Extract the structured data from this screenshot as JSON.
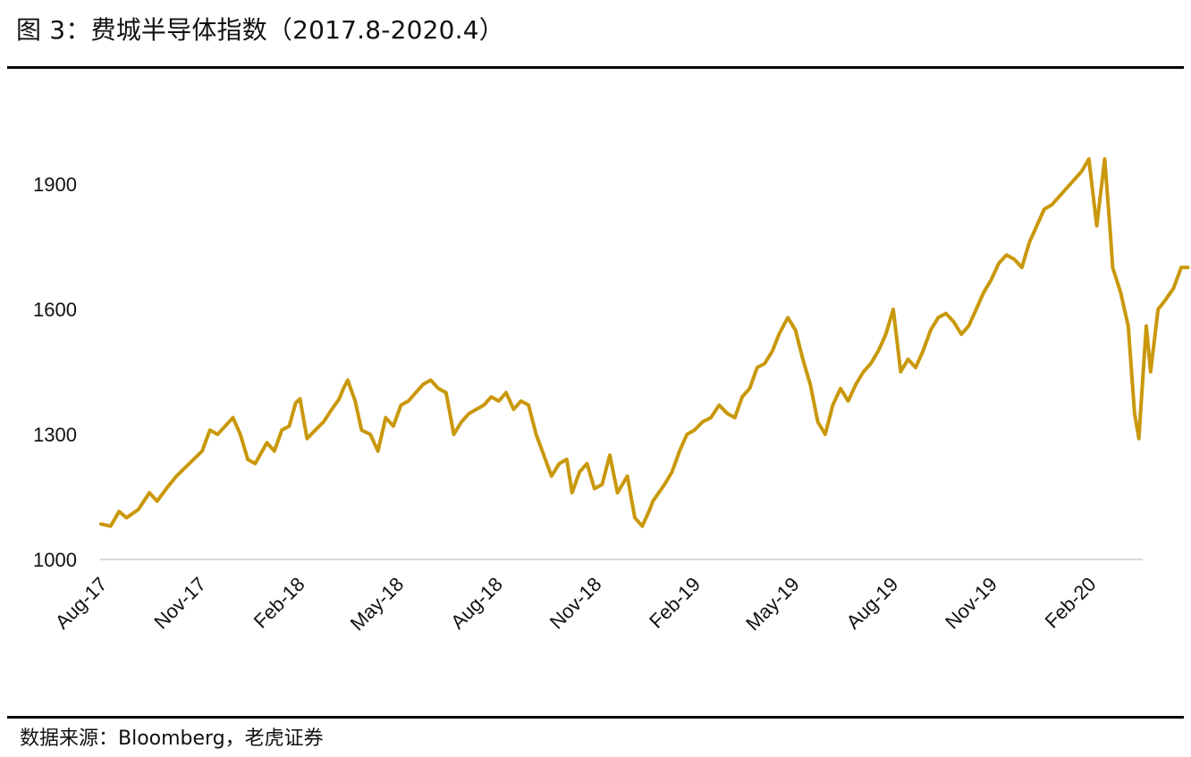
{
  "header": {
    "title": "图 3：费城半导体指数（2017.8-2020.4）"
  },
  "footer": {
    "source": "数据来源：Bloomberg，老虎证券"
  },
  "colors": {
    "series": "#C9980B",
    "axis": "#D9D9D9",
    "text": "#111111",
    "rule": "#000000"
  },
  "chart_data": {
    "type": "line",
    "title": "",
    "xlabel": "",
    "ylabel": "",
    "ylim": [
      1000,
      2000
    ],
    "yticks": [
      1000,
      1300,
      1600,
      1900
    ],
    "xticks": [
      "Aug-17",
      "Nov-17",
      "Feb-18",
      "May-18",
      "Aug-18",
      "Nov-18",
      "Feb-19",
      "May-19",
      "Aug-19",
      "Nov-19",
      "Feb-20"
    ],
    "grid": false,
    "legend": "none",
    "series": [
      {
        "x": [
          "2017-08-01",
          "2017-08-10",
          "2017-08-18",
          "2017-08-25",
          "2017-09-05",
          "2017-09-15",
          "2017-09-22",
          "2017-10-02",
          "2017-10-10",
          "2017-10-18",
          "2017-10-26",
          "2017-11-03",
          "2017-11-10",
          "2017-11-17",
          "2017-11-24",
          "2017-12-01",
          "2017-12-08",
          "2017-12-15",
          "2017-12-22",
          "2018-01-02",
          "2018-01-09",
          "2018-01-16",
          "2018-01-23",
          "2018-01-29",
          "2018-02-02",
          "2018-02-08",
          "2018-02-15",
          "2018-02-22",
          "2018-03-01",
          "2018-03-08",
          "2018-03-12",
          "2018-03-16",
          "2018-03-23",
          "2018-03-29",
          "2018-04-06",
          "2018-04-13",
          "2018-04-20",
          "2018-04-27",
          "2018-05-04",
          "2018-05-11",
          "2018-05-18",
          "2018-05-25",
          "2018-06-01",
          "2018-06-08",
          "2018-06-15",
          "2018-06-22",
          "2018-06-29",
          "2018-07-06",
          "2018-07-13",
          "2018-07-20",
          "2018-07-27",
          "2018-08-03",
          "2018-08-10",
          "2018-08-17",
          "2018-08-24",
          "2018-08-31",
          "2018-09-07",
          "2018-09-14",
          "2018-09-21",
          "2018-09-28",
          "2018-10-05",
          "2018-10-10",
          "2018-10-17",
          "2018-10-24",
          "2018-10-31",
          "2018-11-07",
          "2018-11-14",
          "2018-11-21",
          "2018-11-30",
          "2018-12-07",
          "2018-12-14",
          "2018-12-21",
          "2018-12-24",
          "2019-01-04",
          "2019-01-11",
          "2019-01-18",
          "2019-01-25",
          "2019-02-01",
          "2019-02-08",
          "2019-02-15",
          "2019-02-22",
          "2019-03-01",
          "2019-03-08",
          "2019-03-15",
          "2019-03-22",
          "2019-03-29",
          "2019-04-05",
          "2019-04-12",
          "2019-04-18",
          "2019-04-26",
          "2019-05-03",
          "2019-05-10",
          "2019-05-17",
          "2019-05-24",
          "2019-05-31",
          "2019-06-07",
          "2019-06-14",
          "2019-06-21",
          "2019-06-28",
          "2019-07-05",
          "2019-07-12",
          "2019-07-19",
          "2019-07-26",
          "2019-08-02",
          "2019-08-09",
          "2019-08-16",
          "2019-08-23",
          "2019-08-30",
          "2019-09-06",
          "2019-09-13",
          "2019-09-20",
          "2019-09-27",
          "2019-10-04",
          "2019-10-11",
          "2019-10-18",
          "2019-10-25",
          "2019-11-01",
          "2019-11-08",
          "2019-11-15",
          "2019-11-22",
          "2019-11-29",
          "2019-12-06",
          "2019-12-13",
          "2019-12-20",
          "2019-12-27",
          "2020-01-03",
          "2020-01-10",
          "2020-01-17",
          "2020-01-24",
          "2020-01-31",
          "2020-02-07",
          "2020-02-14",
          "2020-02-19",
          "2020-02-21",
          "2020-02-28",
          "2020-03-06",
          "2020-03-12",
          "2020-03-16",
          "2020-03-18",
          "2020-03-23",
          "2020-03-27",
          "2020-04-03",
          "2020-04-09",
          "2020-04-17",
          "2020-04-24",
          "2020-04-30"
        ],
        "values": [
          1085,
          1080,
          1115,
          1100,
          1120,
          1160,
          1140,
          1175,
          1200,
          1220,
          1240,
          1260,
          1310,
          1300,
          1320,
          1340,
          1300,
          1240,
          1230,
          1280,
          1260,
          1310,
          1320,
          1375,
          1385,
          1290,
          1310,
          1330,
          1360,
          1385,
          1410,
          1430,
          1380,
          1310,
          1300,
          1260,
          1340,
          1320,
          1370,
          1380,
          1400,
          1420,
          1430,
          1410,
          1400,
          1300,
          1330,
          1350,
          1360,
          1370,
          1390,
          1380,
          1400,
          1360,
          1380,
          1370,
          1300,
          1250,
          1200,
          1230,
          1240,
          1160,
          1210,
          1230,
          1170,
          1180,
          1250,
          1160,
          1200,
          1100,
          1080,
          1120,
          1140,
          1180,
          1210,
          1260,
          1300,
          1310,
          1330,
          1340,
          1370,
          1350,
          1340,
          1390,
          1410,
          1460,
          1470,
          1500,
          1540,
          1580,
          1550,
          1480,
          1420,
          1330,
          1300,
          1370,
          1410,
          1380,
          1420,
          1450,
          1470,
          1500,
          1540,
          1600,
          1450,
          1480,
          1460,
          1500,
          1550,
          1580,
          1590,
          1570,
          1540,
          1560,
          1600,
          1640,
          1670,
          1710,
          1730,
          1720,
          1700,
          1760,
          1800,
          1840,
          1850,
          1870,
          1890,
          1910,
          1930,
          1960,
          1800,
          1960,
          1780,
          1700,
          1640,
          1560,
          1350,
          1290,
          1370,
          1560,
          1450,
          1600,
          1620,
          1650,
          1700,
          1700
        ]
      }
    ]
  }
}
